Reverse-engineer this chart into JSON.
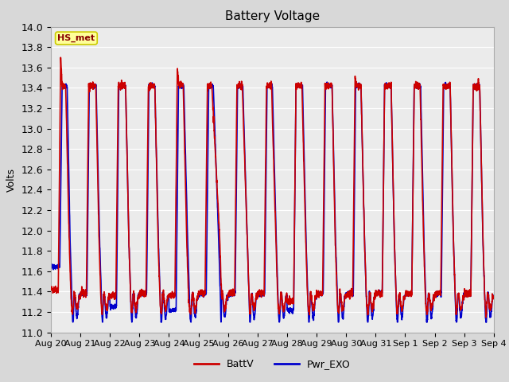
{
  "title": "Battery Voltage",
  "ylabel": "Volts",
  "ylim": [
    11.0,
    14.0
  ],
  "yticks": [
    11.0,
    11.2,
    11.4,
    11.6,
    11.8,
    12.0,
    12.2,
    12.4,
    12.6,
    12.8,
    13.0,
    13.2,
    13.4,
    13.6,
    13.8,
    14.0
  ],
  "xtick_labels": [
    "Aug 20",
    "Aug 21",
    "Aug 22",
    "Aug 23",
    "Aug 24",
    "Aug 25",
    "Aug 26",
    "Aug 27",
    "Aug 28",
    "Aug 29",
    "Aug 30",
    "Aug 31",
    "Sep 1",
    "Sep 2",
    "Sep 3",
    "Sep 4"
  ],
  "line1_color": "#cc0000",
  "line2_color": "#0000cc",
  "line1_label": "BattV",
  "line2_label": "Pwr_EXO",
  "line_width": 1.2,
  "bg_color": "#d8d8d8",
  "plot_bg": "#ebebeb",
  "annotation_text": "HS_met",
  "annotation_bg": "#ffff99",
  "annotation_border": "#cccc00",
  "title_fontsize": 11,
  "axis_fontsize": 9,
  "legend_fontsize": 9,
  "num_days": 15,
  "n_points": 3000
}
